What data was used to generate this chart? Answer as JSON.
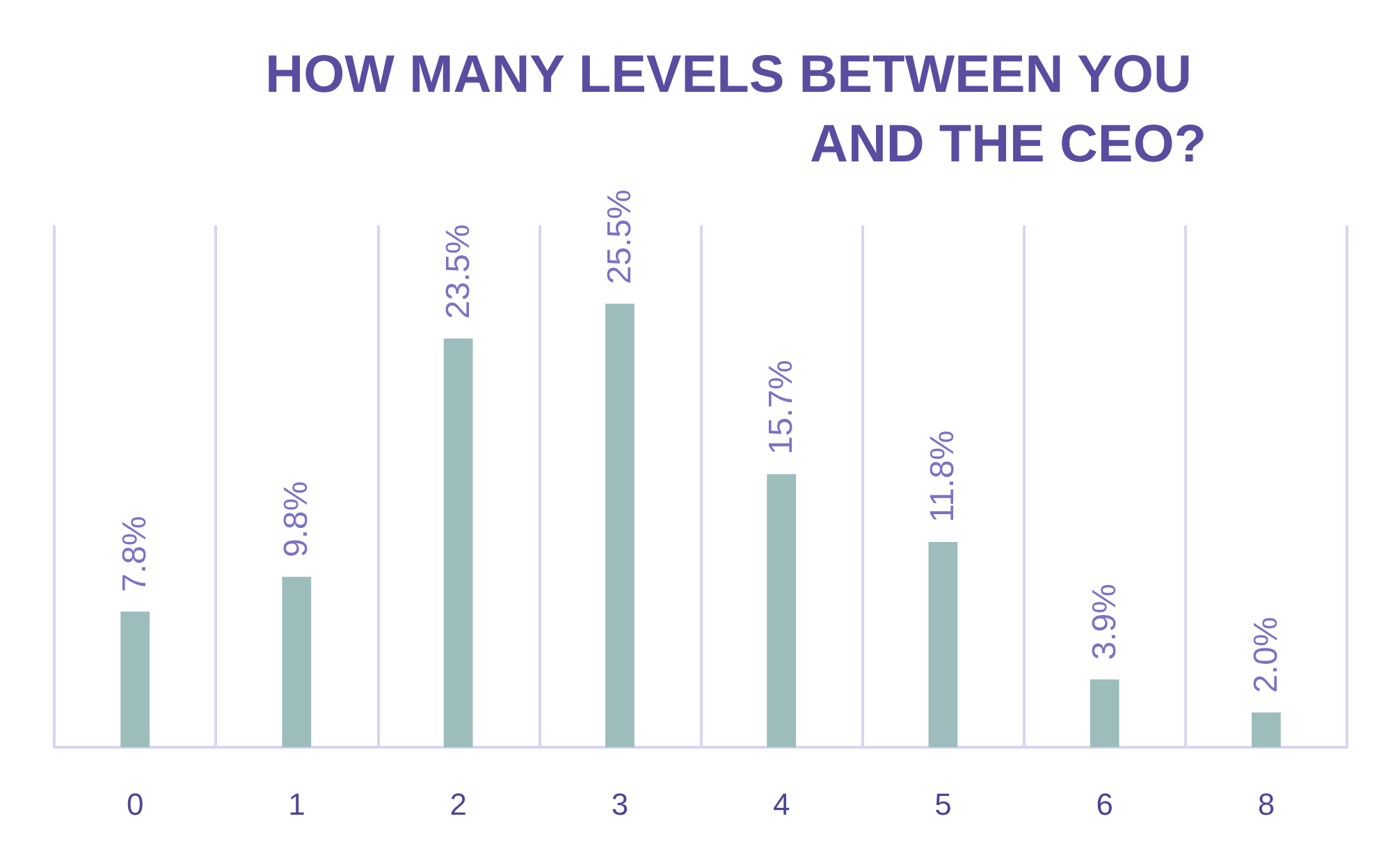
{
  "chart_data": {
    "type": "bar",
    "title": "HOW MANY LEVELS BETWEEN YOU AND THE CEO?",
    "categories": [
      "0",
      "1",
      "2",
      "3",
      "4",
      "5",
      "6",
      "8"
    ],
    "values": [
      7.8,
      9.8,
      23.5,
      25.5,
      15.7,
      11.8,
      3.9,
      2.0
    ],
    "value_labels": [
      "7.8%",
      "9.8%",
      "23.5%",
      "25.5%",
      "15.7%",
      "11.8%",
      "3.9%",
      "2.0%"
    ],
    "color": "#9dbdbc",
    "grid": "x",
    "tick_labels": "x"
  }
}
